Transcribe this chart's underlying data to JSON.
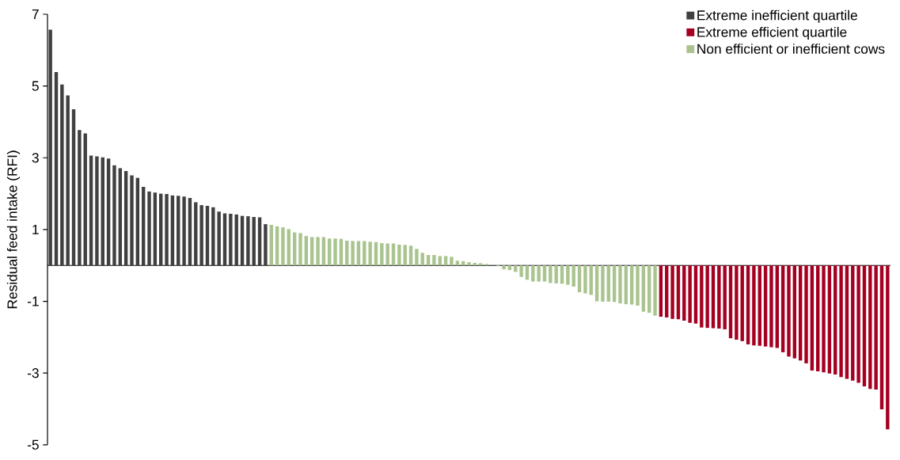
{
  "chart_data": {
    "type": "bar",
    "ylabel": "Residual feed intake (RFI)",
    "categories": [
      null,
      null,
      null,
      null,
      null,
      null,
      null,
      null,
      null,
      null,
      null,
      null,
      null,
      null,
      null,
      null,
      null,
      null,
      null,
      null,
      null,
      null,
      null,
      null,
      null,
      null,
      null,
      null,
      null,
      null,
      null,
      null,
      null,
      null,
      null,
      null,
      null,
      null,
      null,
      null,
      null,
      null,
      null,
      null,
      null,
      null,
      null,
      null,
      null,
      null,
      null,
      null,
      null,
      null,
      null,
      null,
      null,
      null,
      null,
      null,
      null,
      null,
      null,
      null,
      null,
      null,
      null,
      null,
      null,
      null,
      null,
      null,
      null,
      null,
      null,
      null,
      null,
      null,
      null,
      null,
      null,
      null,
      null,
      null,
      null,
      null,
      null,
      null,
      null,
      null,
      null,
      null,
      null,
      null,
      null,
      null,
      null,
      null,
      null,
      null,
      null,
      null,
      null,
      null,
      null,
      null,
      null,
      null,
      null,
      null,
      null,
      null,
      null,
      null,
      null,
      null,
      null,
      null,
      null,
      null,
      null,
      null,
      null,
      null,
      null,
      null,
      null,
      null,
      null,
      null,
      null,
      null,
      null,
      null,
      null,
      null,
      null,
      null,
      null,
      null,
      null,
      null,
      null,
      null,
      null
    ],
    "series": [
      {
        "name": "Extreme inefficient quartile",
        "color": "#404040",
        "values": [
          6.57,
          5.39,
          5.04,
          4.74,
          4.35,
          3.77,
          3.68,
          3.06,
          3.04,
          3.01,
          2.98,
          2.79,
          2.71,
          2.63,
          2.51,
          2.44,
          2.19,
          2.06,
          2.03,
          2.0,
          1.99,
          1.95,
          1.94,
          1.92,
          1.88,
          1.76,
          1.68,
          1.66,
          1.62,
          1.5,
          1.45,
          1.44,
          1.42,
          1.38,
          1.37,
          1.35,
          1.34,
          1.15,
          null,
          null,
          null,
          null,
          null,
          null,
          null,
          null,
          null,
          null,
          null,
          null,
          null,
          null,
          null,
          null,
          null,
          null,
          null,
          null,
          null,
          null,
          null,
          null,
          null,
          null,
          null,
          null,
          null,
          null,
          null,
          null,
          null,
          null,
          null,
          null,
          null,
          null,
          null,
          null,
          null,
          null,
          null,
          null,
          null,
          null,
          null,
          null,
          null,
          null,
          null,
          null,
          null,
          null,
          null,
          null,
          null,
          null,
          null,
          null,
          null,
          null,
          null,
          null,
          null,
          null,
          null,
          null,
          null,
          null,
          null,
          null,
          null,
          null,
          null,
          null,
          null,
          null,
          null,
          null,
          null,
          null,
          null,
          null,
          null,
          null,
          null,
          null,
          null,
          null,
          null,
          null,
          null,
          null,
          null,
          null,
          null,
          null,
          null,
          null,
          null,
          null,
          null,
          null,
          null,
          null,
          null
        ]
      },
      {
        "name": "Extreme efficient quartile",
        "color": "#a50021",
        "values": [
          null,
          null,
          null,
          null,
          null,
          null,
          null,
          null,
          null,
          null,
          null,
          null,
          null,
          null,
          null,
          null,
          null,
          null,
          null,
          null,
          null,
          null,
          null,
          null,
          null,
          null,
          null,
          null,
          null,
          null,
          null,
          null,
          null,
          null,
          null,
          null,
          null,
          null,
          null,
          null,
          null,
          null,
          null,
          null,
          null,
          null,
          null,
          null,
          null,
          null,
          null,
          null,
          null,
          null,
          null,
          null,
          null,
          null,
          null,
          null,
          null,
          null,
          null,
          null,
          null,
          null,
          null,
          null,
          null,
          null,
          null,
          null,
          null,
          null,
          null,
          null,
          null,
          null,
          null,
          null,
          null,
          null,
          null,
          null,
          null,
          null,
          null,
          null,
          null,
          null,
          null,
          null,
          null,
          null,
          null,
          null,
          null,
          null,
          null,
          null,
          null,
          null,
          null,
          null,
          null,
          -1.43,
          -1.45,
          -1.49,
          -1.5,
          -1.54,
          -1.6,
          -1.62,
          -1.73,
          -1.74,
          -1.75,
          -1.76,
          -1.78,
          -2.03,
          -2.07,
          -2.11,
          -2.2,
          -2.23,
          -2.24,
          -2.26,
          -2.28,
          -2.3,
          -2.42,
          -2.54,
          -2.59,
          -2.65,
          -2.73,
          -2.93,
          -2.95,
          -2.98,
          -3.01,
          -3.04,
          -3.11,
          -3.16,
          -3.21,
          -3.27,
          -3.37,
          -3.44,
          -3.46,
          -4.01,
          -4.57
        ]
      },
      {
        "name": "Non efficient or inefficient cows",
        "color": "#a9c48e",
        "values": [
          null,
          null,
          null,
          null,
          null,
          null,
          null,
          null,
          null,
          null,
          null,
          null,
          null,
          null,
          null,
          null,
          null,
          null,
          null,
          null,
          null,
          null,
          null,
          null,
          null,
          null,
          null,
          null,
          null,
          null,
          null,
          null,
          null,
          null,
          null,
          null,
          null,
          null,
          1.13,
          1.09,
          1.06,
          1.01,
          0.92,
          0.9,
          0.82,
          0.79,
          0.79,
          0.79,
          0.75,
          0.75,
          0.74,
          0.69,
          0.68,
          0.68,
          0.68,
          0.66,
          0.65,
          0.62,
          0.61,
          0.61,
          0.58,
          0.57,
          0.55,
          0.46,
          0.35,
          0.29,
          0.29,
          0.26,
          0.26,
          0.24,
          0.13,
          0.12,
          0.09,
          0.07,
          0.06,
          0.04,
          null,
          -0.02,
          -0.11,
          -0.13,
          -0.18,
          -0.32,
          -0.4,
          -0.45,
          -0.45,
          -0.45,
          -0.49,
          -0.5,
          -0.51,
          -0.54,
          -0.59,
          -0.75,
          -0.78,
          -0.82,
          -1.0,
          -1.01,
          -1.01,
          -1.02,
          -1.06,
          -1.08,
          -1.09,
          -1.12,
          -1.29,
          -1.32,
          -1.4,
          null,
          null,
          null,
          null,
          null,
          null,
          null,
          null,
          null,
          null,
          null,
          null,
          null,
          null,
          null,
          null,
          null,
          null,
          null,
          null,
          null,
          null,
          null,
          null,
          null,
          null,
          null,
          null,
          null,
          null,
          null,
          null,
          null,
          null,
          null,
          null,
          null,
          null,
          null,
          null
        ]
      }
    ],
    "ylim": [
      -5,
      7
    ],
    "yticks": [
      -5,
      -3,
      -1,
      1,
      3,
      5,
      7
    ],
    "tick_labels": "y",
    "legend": "top right"
  }
}
